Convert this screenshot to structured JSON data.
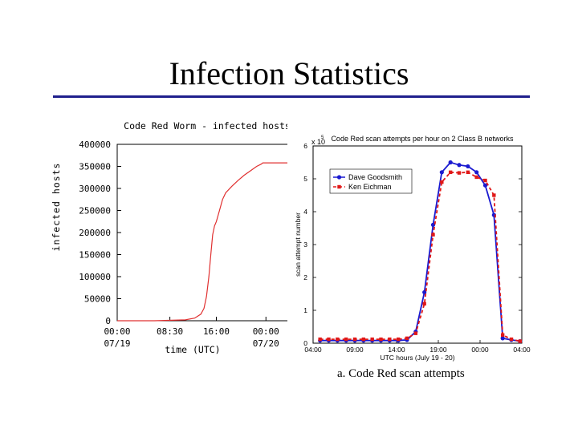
{
  "slide": {
    "title": "Infection Statistics",
    "caption": "a. Code Red scan attempts"
  },
  "chart_data": [
    {
      "type": "line",
      "title": "Code Red Worm - infected hosts",
      "xlabel": "time (UTC)",
      "ylabel": "infected hosts",
      "ylim": [
        0,
        400000
      ],
      "x_ticks": [
        {
          "x": 0,
          "line1": "00:00",
          "line2": "07/19"
        },
        {
          "x": 8.5,
          "line1": "08:30",
          "line2": ""
        },
        {
          "x": 16,
          "line1": "16:00",
          "line2": ""
        },
        {
          "x": 24,
          "line1": "00:00",
          "line2": "07/20"
        }
      ],
      "y_ticks": [
        "0",
        "50000",
        "100000",
        "150000",
        "200000",
        "250000",
        "300000",
        "350000",
        "400000"
      ],
      "y_values": [
        0,
        50000,
        100000,
        150000,
        200000,
        250000,
        300000,
        350000,
        400000
      ],
      "xlim": [
        0,
        28.5
      ],
      "grid": false,
      "series": [
        {
          "color": "#e03030",
          "points": [
            [
              0,
              0
            ],
            [
              6,
              0
            ],
            [
              11,
              2000
            ],
            [
              12.5,
              6000
            ],
            [
              13.5,
              15000
            ],
            [
              14,
              28000
            ],
            [
              14.4,
              55000
            ],
            [
              14.8,
              100000
            ],
            [
              15.1,
              150000
            ],
            [
              15.4,
              195000
            ],
            [
              15.7,
              215000
            ],
            [
              16,
              225000
            ],
            [
              16.5,
              250000
            ],
            [
              17,
              275000
            ],
            [
              17.5,
              290000
            ],
            [
              18.5,
              305000
            ],
            [
              19.5,
              318000
            ],
            [
              20.5,
              330000
            ],
            [
              21.5,
              340000
            ],
            [
              22.5,
              350000
            ],
            [
              23.2,
              355000
            ],
            [
              23.5,
              358000
            ],
            [
              28.5,
              358000
            ]
          ]
        }
      ]
    },
    {
      "type": "line",
      "title": "Code Red scan attempts per hour on 2 Class B networks",
      "xlabel": "UTC hours (July 19 - 20)",
      "ylabel": "scan attempt number",
      "ylim": [
        0,
        6
      ],
      "y_multiplier": "x 10",
      "y_multiplier_exp": "5",
      "y_ticks": [
        "0",
        "1",
        "2",
        "3",
        "4",
        "5",
        "6"
      ],
      "x_ticks": [
        "04:00",
        "09:00",
        "14:00",
        "19:00",
        "00:00",
        "04:00"
      ],
      "xlim": [
        0,
        24
      ],
      "legend_position": "top-left",
      "series": [
        {
          "name": "Dave Goodsmith",
          "color": "#1a1ad0",
          "dash": "",
          "marker": "circle",
          "points": [
            [
              0.8,
              0.08
            ],
            [
              1.8,
              0.08
            ],
            [
              2.8,
              0.08
            ],
            [
              3.8,
              0.08
            ],
            [
              4.8,
              0.08
            ],
            [
              5.8,
              0.08
            ],
            [
              6.8,
              0.08
            ],
            [
              7.8,
              0.08
            ],
            [
              8.8,
              0.08
            ],
            [
              9.8,
              0.08
            ],
            [
              10.8,
              0.1
            ],
            [
              11.8,
              0.35
            ],
            [
              12.8,
              1.55
            ],
            [
              13.8,
              3.6
            ],
            [
              14.8,
              5.2
            ],
            [
              15.8,
              5.5
            ],
            [
              16.8,
              5.42
            ],
            [
              17.8,
              5.38
            ],
            [
              18.8,
              5.2
            ],
            [
              19.8,
              4.8
            ],
            [
              20.8,
              3.9
            ],
            [
              21.8,
              0.15
            ],
            [
              22.8,
              0.1
            ],
            [
              23.8,
              0.06
            ]
          ]
        },
        {
          "name": "Ken Eichman",
          "color": "#e01818",
          "dash": "4,3",
          "marker": "square",
          "points": [
            [
              0.8,
              0.12
            ],
            [
              1.8,
              0.12
            ],
            [
              2.8,
              0.12
            ],
            [
              3.8,
              0.12
            ],
            [
              4.8,
              0.12
            ],
            [
              5.8,
              0.12
            ],
            [
              6.8,
              0.12
            ],
            [
              7.8,
              0.12
            ],
            [
              8.8,
              0.12
            ],
            [
              9.8,
              0.12
            ],
            [
              10.8,
              0.15
            ],
            [
              11.8,
              0.3
            ],
            [
              12.8,
              1.2
            ],
            [
              13.8,
              3.3
            ],
            [
              14.8,
              4.9
            ],
            [
              15.8,
              5.2
            ],
            [
              16.8,
              5.18
            ],
            [
              17.8,
              5.2
            ],
            [
              18.8,
              5.05
            ],
            [
              19.8,
              4.95
            ],
            [
              20.8,
              4.5
            ],
            [
              21.8,
              0.25
            ],
            [
              22.8,
              0.12
            ],
            [
              23.8,
              0.06
            ]
          ]
        }
      ]
    }
  ]
}
